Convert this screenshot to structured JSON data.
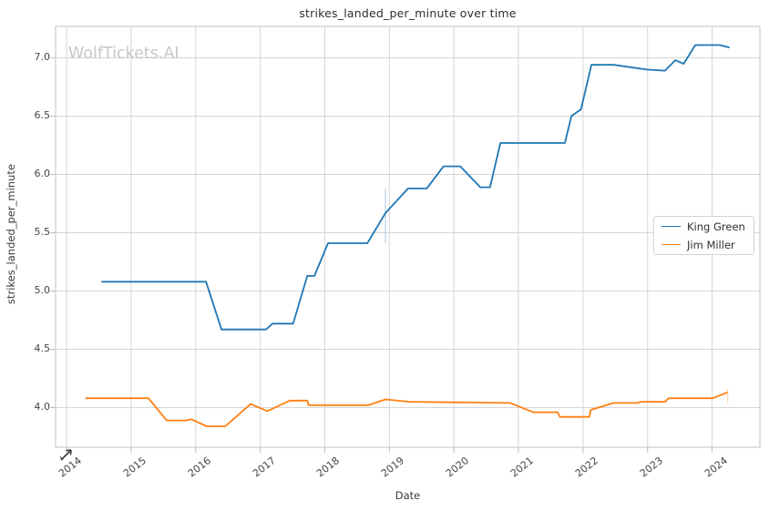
{
  "app": {
    "watermark": "WolfTickets.AI"
  },
  "chart_data": {
    "type": "line",
    "title": "strikes_landed_per_minute over time",
    "xlabel": "Date",
    "ylabel": "strikes_landed_per_minute",
    "grid": true,
    "background": "#ffffff",
    "grid_color": "#d5d5d5",
    "border_color": "#cccccc",
    "xlim": [
      2013.83,
      2024.74
    ],
    "ylim": [
      3.66,
      7.27
    ],
    "x_ticks": [
      2014,
      2015,
      2016,
      2017,
      2018,
      2019,
      2020,
      2021,
      2022,
      2023,
      2024
    ],
    "y_ticks": [
      4.0,
      4.5,
      5.0,
      5.5,
      6.0,
      6.5,
      7.0
    ],
    "legend": {
      "position": "center-right",
      "entries": [
        {
          "label": "King Green",
          "color": "#1f77b4"
        },
        {
          "label": "Jim Miller",
          "color": "#ff7f0e"
        }
      ]
    },
    "series": [
      {
        "name": "King Green",
        "color": "#1f77b4",
        "points": [
          [
            2014.55,
            5.08
          ],
          [
            2016.16,
            5.08
          ],
          [
            2016.4,
            4.67
          ],
          [
            2017.09,
            4.67
          ],
          [
            2017.19,
            4.72
          ],
          [
            2017.51,
            4.72
          ],
          [
            2017.73,
            5.13
          ],
          [
            2017.84,
            5.13
          ],
          [
            2018.05,
            5.41
          ],
          [
            2018.66,
            5.41
          ],
          [
            2018.94,
            5.67
          ],
          [
            2019.29,
            5.88
          ],
          [
            2019.58,
            5.88
          ],
          [
            2019.84,
            6.07
          ],
          [
            2020.1,
            6.07
          ],
          [
            2020.41,
            5.89
          ],
          [
            2020.56,
            5.89
          ],
          [
            2020.72,
            6.27
          ],
          [
            2021.72,
            6.27
          ],
          [
            2021.82,
            6.5
          ],
          [
            2021.97,
            6.56
          ],
          [
            2022.13,
            6.94
          ],
          [
            2022.48,
            6.94
          ],
          [
            2022.99,
            6.9
          ],
          [
            2023.27,
            6.89
          ],
          [
            2023.43,
            6.98
          ],
          [
            2023.56,
            6.95
          ],
          [
            2023.74,
            7.11
          ],
          [
            2024.12,
            7.11
          ],
          [
            2024.26,
            7.09
          ]
        ]
      },
      {
        "name": "Jim Miller",
        "color": "#ff7f0e",
        "points": [
          [
            2014.3,
            4.08
          ],
          [
            2015.27,
            4.08
          ],
          [
            2015.55,
            3.89
          ],
          [
            2015.86,
            3.89
          ],
          [
            2015.93,
            3.9
          ],
          [
            2016.17,
            3.84
          ],
          [
            2016.46,
            3.84
          ],
          [
            2016.85,
            4.03
          ],
          [
            2017.11,
            3.97
          ],
          [
            2017.46,
            4.06
          ],
          [
            2017.73,
            4.06
          ],
          [
            2017.75,
            4.02
          ],
          [
            2018.67,
            4.02
          ],
          [
            2018.94,
            4.07
          ],
          [
            2019.32,
            4.05
          ],
          [
            2020.87,
            4.04
          ],
          [
            2021.23,
            3.96
          ],
          [
            2021.61,
            3.96
          ],
          [
            2021.64,
            3.92
          ],
          [
            2022.1,
            3.92
          ],
          [
            2022.12,
            3.98
          ],
          [
            2022.47,
            4.04
          ],
          [
            2022.85,
            4.04
          ],
          [
            2022.89,
            4.05
          ],
          [
            2023.27,
            4.05
          ],
          [
            2023.33,
            4.08
          ],
          [
            2024.01,
            4.08
          ],
          [
            2024.23,
            4.13
          ]
        ]
      }
    ],
    "annotations": [
      {
        "type": "vline",
        "x": 2018.94,
        "y1": 5.41,
        "y2": 5.88,
        "color": "#bcd7eb"
      },
      {
        "type": "vline",
        "x": 2024.24,
        "y1": 4.04,
        "y2": 4.16,
        "color": "#ffd9b5"
      }
    ]
  }
}
